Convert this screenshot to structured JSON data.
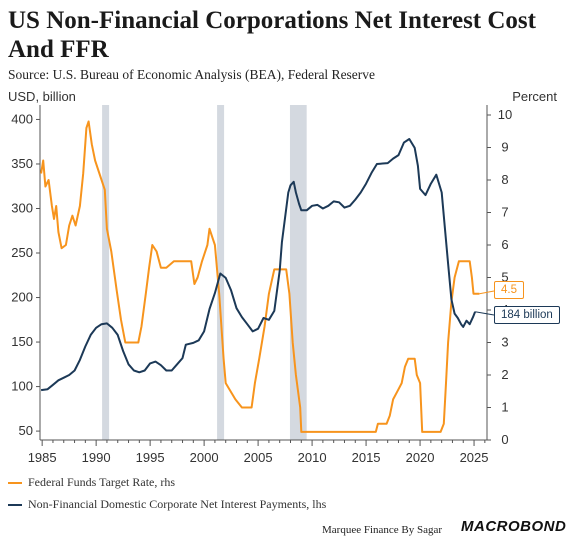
{
  "title": "US Non-Financial Corporations Net Interest Cost And FFR",
  "subtitle": "Source: U.S. Bureau of Economic Analysis (BEA), Federal Reserve",
  "left_unit": "USD, billion",
  "right_unit": "Percent",
  "legend": [
    {
      "label": "Federal Funds Target Rate, rhs",
      "color": "#f7941d"
    },
    {
      "label": "Non-Financial Domestic Corporate Net Interest Payments, lhs",
      "color": "#1c3957"
    }
  ],
  "callouts": {
    "ffr": "4.5",
    "interest": "184 billion"
  },
  "footer": "Marquee Finance By Sagar",
  "brand": "MACROBOND",
  "chart_data": {
    "type": "line",
    "x_ticks": [
      "1985",
      "1990",
      "1995",
      "2000",
      "2005",
      "2010",
      "2015",
      "2020",
      "2025"
    ],
    "y_left_ticks": [
      "50",
      "100",
      "150",
      "200",
      "250",
      "300",
      "350",
      "400"
    ],
    "y_right_ticks": [
      "0",
      "1",
      "2",
      "3",
      "4",
      "5",
      "6",
      "7",
      "8",
      "9",
      "10"
    ],
    "y_left_range": [
      40,
      405
    ],
    "y_right_range": [
      0,
      10
    ],
    "x_range": [
      1984.8,
      2026.2
    ],
    "recessions": [
      [
        1990.55,
        1991.2
      ],
      [
        2001.2,
        2001.85
      ],
      [
        2007.95,
        2009.5
      ]
    ],
    "series": [
      {
        "name": "Federal Funds Target Rate, rhs",
        "axis": "right",
        "color": "#f7941d",
        "points": [
          [
            1984.9,
            8.2
          ],
          [
            1985.1,
            8.6
          ],
          [
            1985.3,
            7.8
          ],
          [
            1985.6,
            8.0
          ],
          [
            1985.9,
            7.2
          ],
          [
            1986.1,
            6.8
          ],
          [
            1986.3,
            7.2
          ],
          [
            1986.5,
            6.4
          ],
          [
            1986.8,
            5.9
          ],
          [
            1987.2,
            6.0
          ],
          [
            1987.5,
            6.6
          ],
          [
            1987.8,
            6.9
          ],
          [
            1988.1,
            6.6
          ],
          [
            1988.5,
            7.2
          ],
          [
            1988.8,
            8.2
          ],
          [
            1989.1,
            9.6
          ],
          [
            1989.3,
            9.8
          ],
          [
            1989.6,
            9.1
          ],
          [
            1989.9,
            8.6
          ],
          [
            1990.3,
            8.2
          ],
          [
            1990.8,
            7.7
          ],
          [
            1991.0,
            6.5
          ],
          [
            1991.4,
            5.8
          ],
          [
            1991.9,
            4.6
          ],
          [
            1992.3,
            3.7
          ],
          [
            1992.7,
            3.0
          ],
          [
            1993.5,
            3.0
          ],
          [
            1993.9,
            3.0
          ],
          [
            1994.2,
            3.5
          ],
          [
            1994.6,
            4.5
          ],
          [
            1994.9,
            5.3
          ],
          [
            1995.2,
            6.0
          ],
          [
            1995.6,
            5.8
          ],
          [
            1996.0,
            5.3
          ],
          [
            1996.5,
            5.3
          ],
          [
            1997.2,
            5.5
          ],
          [
            1998.8,
            5.5
          ],
          [
            1999.1,
            4.8
          ],
          [
            1999.4,
            5.0
          ],
          [
            1999.8,
            5.5
          ],
          [
            2000.3,
            6.0
          ],
          [
            2000.5,
            6.5
          ],
          [
            2001.0,
            6.0
          ],
          [
            2001.4,
            4.5
          ],
          [
            2001.8,
            2.5
          ],
          [
            2002.0,
            1.75
          ],
          [
            2002.9,
            1.25
          ],
          [
            2003.5,
            1.0
          ],
          [
            2004.4,
            1.0
          ],
          [
            2004.7,
            1.75
          ],
          [
            2005.1,
            2.5
          ],
          [
            2005.6,
            3.5
          ],
          [
            2006.0,
            4.5
          ],
          [
            2006.5,
            5.25
          ],
          [
            2007.6,
            5.25
          ],
          [
            2007.9,
            4.5
          ],
          [
            2008.2,
            3.0
          ],
          [
            2008.5,
            2.0
          ],
          [
            2008.9,
            1.0
          ],
          [
            2009.0,
            0.25
          ],
          [
            2015.9,
            0.25
          ],
          [
            2016.1,
            0.5
          ],
          [
            2016.9,
            0.5
          ],
          [
            2017.2,
            0.75
          ],
          [
            2017.5,
            1.25
          ],
          [
            2017.9,
            1.5
          ],
          [
            2018.3,
            1.75
          ],
          [
            2018.6,
            2.25
          ],
          [
            2018.9,
            2.5
          ],
          [
            2019.5,
            2.5
          ],
          [
            2019.7,
            2.0
          ],
          [
            2020.0,
            1.75
          ],
          [
            2020.2,
            0.25
          ],
          [
            2021.9,
            0.25
          ],
          [
            2022.2,
            0.5
          ],
          [
            2022.4,
            1.75
          ],
          [
            2022.6,
            3.0
          ],
          [
            2022.9,
            4.25
          ],
          [
            2023.2,
            5.0
          ],
          [
            2023.6,
            5.5
          ],
          [
            2024.6,
            5.5
          ],
          [
            2024.8,
            5.0
          ],
          [
            2024.95,
            4.5
          ],
          [
            2025.5,
            4.5
          ]
        ]
      },
      {
        "name": "Non-Financial Domestic Corporate Net Interest Payments, lhs",
        "axis": "left",
        "color": "#1c3957",
        "points": [
          [
            1984.9,
            96
          ],
          [
            1985.5,
            97
          ],
          [
            1986.0,
            102
          ],
          [
            1986.5,
            107
          ],
          [
            1987.0,
            110
          ],
          [
            1987.5,
            113
          ],
          [
            1988.0,
            118
          ],
          [
            1988.5,
            130
          ],
          [
            1989.0,
            145
          ],
          [
            1989.5,
            158
          ],
          [
            1990.0,
            166
          ],
          [
            1990.5,
            170
          ],
          [
            1991.0,
            171
          ],
          [
            1991.5,
            166
          ],
          [
            1992.0,
            158
          ],
          [
            1992.5,
            140
          ],
          [
            1993.0,
            125
          ],
          [
            1993.5,
            118
          ],
          [
            1994.0,
            116
          ],
          [
            1994.5,
            118
          ],
          [
            1995.0,
            126
          ],
          [
            1995.5,
            128
          ],
          [
            1996.0,
            124
          ],
          [
            1996.5,
            118
          ],
          [
            1997.0,
            118
          ],
          [
            1997.5,
            125
          ],
          [
            1998.0,
            132
          ],
          [
            1998.3,
            147
          ],
          [
            1999.0,
            149
          ],
          [
            1999.5,
            152
          ],
          [
            2000.0,
            162
          ],
          [
            2000.5,
            187
          ],
          [
            2001.0,
            205
          ],
          [
            2001.5,
            227
          ],
          [
            2002.0,
            222
          ],
          [
            2002.5,
            208
          ],
          [
            2003.0,
            188
          ],
          [
            2003.5,
            178
          ],
          [
            2004.0,
            170
          ],
          [
            2004.5,
            162
          ],
          [
            2005.0,
            165
          ],
          [
            2005.5,
            177
          ],
          [
            2006.0,
            175
          ],
          [
            2006.5,
            185
          ],
          [
            2007.0,
            230
          ],
          [
            2007.2,
            262
          ],
          [
            2007.5,
            290
          ],
          [
            2007.8,
            318
          ],
          [
            2008.0,
            326
          ],
          [
            2008.3,
            330
          ],
          [
            2008.5,
            318
          ],
          [
            2008.8,
            305
          ],
          [
            2009.0,
            298
          ],
          [
            2009.5,
            298
          ],
          [
            2010.0,
            303
          ],
          [
            2010.5,
            304
          ],
          [
            2011.0,
            300
          ],
          [
            2011.5,
            303
          ],
          [
            2012.0,
            308
          ],
          [
            2012.5,
            307
          ],
          [
            2013.0,
            301
          ],
          [
            2013.5,
            303
          ],
          [
            2014.0,
            310
          ],
          [
            2014.5,
            318
          ],
          [
            2015.0,
            328
          ],
          [
            2015.5,
            340
          ],
          [
            2016.0,
            350
          ],
          [
            2017.0,
            351
          ],
          [
            2017.5,
            356
          ],
          [
            2018.0,
            360
          ],
          [
            2018.5,
            374
          ],
          [
            2019.0,
            378
          ],
          [
            2019.5,
            368
          ],
          [
            2019.8,
            348
          ],
          [
            2020.0,
            322
          ],
          [
            2020.5,
            315
          ],
          [
            2021.0,
            328
          ],
          [
            2021.5,
            338
          ],
          [
            2022.0,
            318
          ],
          [
            2022.3,
            278
          ],
          [
            2022.6,
            238
          ],
          [
            2022.9,
            198
          ],
          [
            2023.2,
            182
          ],
          [
            2023.5,
            177
          ],
          [
            2023.8,
            170
          ],
          [
            2024.0,
            167
          ],
          [
            2024.3,
            174
          ],
          [
            2024.6,
            170
          ],
          [
            2024.9,
            178
          ],
          [
            2025.1,
            184
          ]
        ]
      }
    ]
  }
}
